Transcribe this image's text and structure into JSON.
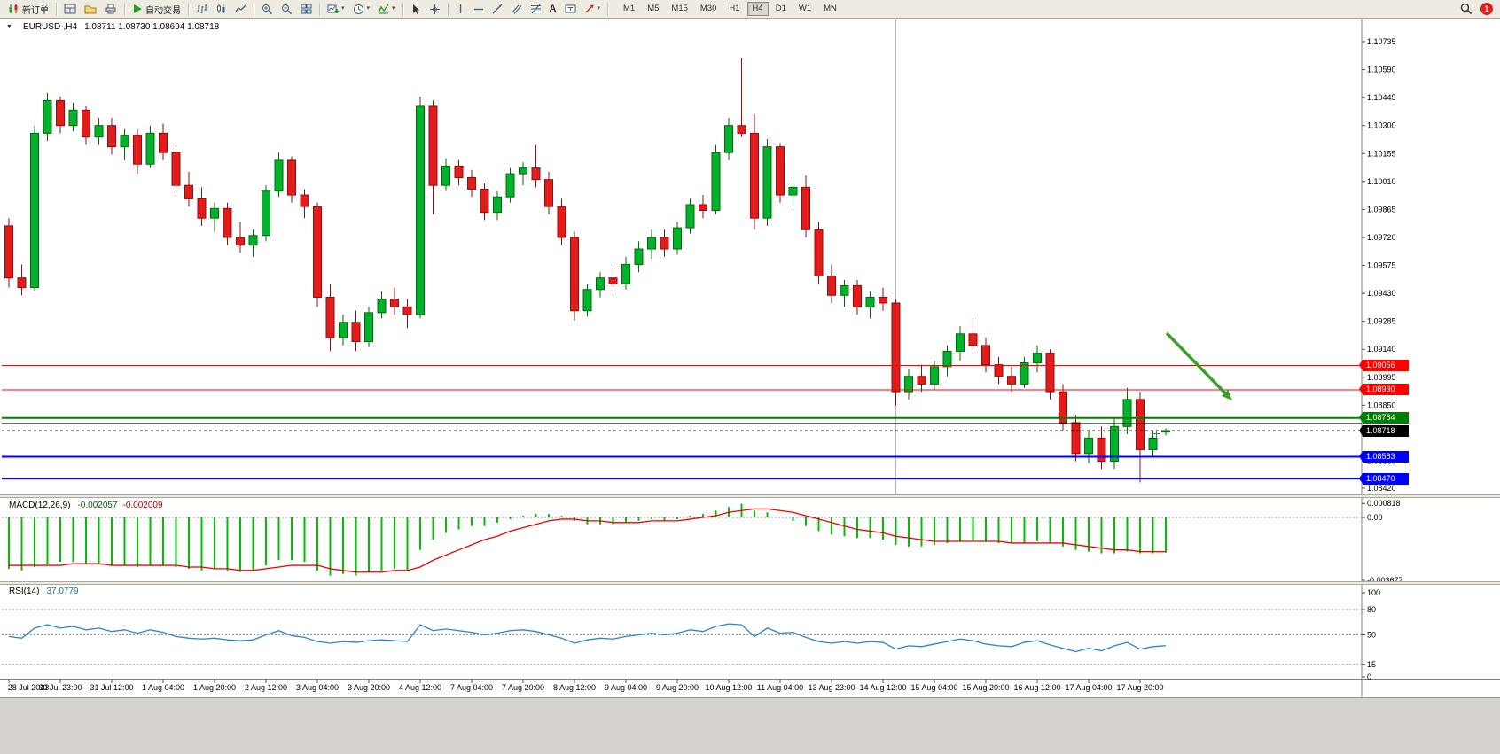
{
  "toolbar": {
    "new_order_label": "新订单",
    "autotrade_label": "自动交易",
    "text_tool_glyph": "A",
    "caret_icon": "▾",
    "timeframes": [
      "M1",
      "M5",
      "M15",
      "M30",
      "H1",
      "H4",
      "D1",
      "W1",
      "MN"
    ],
    "active_timeframe": "H4",
    "notification_count": "1"
  },
  "chart": {
    "one_click_icon": "▼",
    "symbol_period": "EURUSD-,H4",
    "ohlc_text": "1.08711 1.08730 1.08694 1.08718",
    "price_axis": [
      "1.10735",
      "1.10590",
      "1.10445",
      "1.10300",
      "1.10155",
      "1.10010",
      "1.09865",
      "1.09720",
      "1.09575",
      "1.09430",
      "1.09285",
      "1.09140",
      "1.08995",
      "1.08850",
      "1.08705",
      "1.08560",
      "1.08420"
    ],
    "time_axis": [
      "28 Jul 2023",
      "30 Jul 23:00",
      "31 Jul 12:00",
      "1 Aug 04:00",
      "1 Aug 20:00",
      "2 Aug 12:00",
      "3 Aug 04:00",
      "3 Aug 20:00",
      "4 Aug 12:00",
      "7 Aug 04:00",
      "7 Aug 20:00",
      "8 Aug 12:00",
      "9 Aug 04:00",
      "9 Aug 20:00",
      "10 Aug 12:00",
      "11 Aug 04:00",
      "13 Aug 23:00",
      "14 Aug 12:00",
      "15 Aug 04:00",
      "15 Aug 20:00",
      "16 Aug 12:00",
      "17 Aug 04:00",
      "17 Aug 20:00"
    ],
    "levels": [
      {
        "label": "1.09056",
        "price": 1.09056,
        "color": "#ff0000",
        "width": 1,
        "style": "solid"
      },
      {
        "label": "1.08930",
        "price": 1.0893,
        "color": "#ff0000",
        "width": 1,
        "style": "solid"
      },
      {
        "label": "1.08784",
        "price": 1.08784,
        "color": "#008000",
        "width": 2,
        "style": "solid"
      },
      {
        "label": "",
        "price": 1.08756,
        "color": "#111111",
        "width": 1,
        "style": "solid"
      },
      {
        "label": "1.08718",
        "price": 1.08718,
        "color": "#000000",
        "width": 1,
        "style": "dot"
      },
      {
        "label": "1.08583",
        "price": 1.08583,
        "color": "#0000ff",
        "width": 2,
        "style": "solid"
      },
      {
        "label": "1.08470",
        "price": 1.0847,
        "color": "#0000ff",
        "width": 2,
        "style": "solid"
      }
    ],
    "colors": {
      "bull": "#00b22d",
      "bear": "#e21b1b",
      "bull_edge": "#046b04",
      "bear_edge": "#8f0f0f",
      "macd_hist": "#00c000",
      "macd_signal": "#f00000",
      "rsi_line": "#2a85d0",
      "background": "#ffffff",
      "axis_text": "#000000"
    },
    "annotations": {
      "arrow": {
        "from": [
          1316,
          376
        ],
        "to": [
          1390,
          452
        ],
        "color": "#36a027"
      },
      "vline_index": 69
    }
  },
  "macd": {
    "title": "MACD(12,26,9)",
    "value_main": "-0.002057",
    "value_signal": "-0.002009",
    "axis": [
      "0.000818",
      "0.00",
      "-0.003677"
    ]
  },
  "rsi": {
    "title": "RSI(14)",
    "value_text": "37.0779",
    "axis": [
      "100",
      "80",
      "50",
      "15",
      "0"
    ],
    "levels": [
      80,
      50,
      15
    ]
  },
  "chart_data": [
    {
      "type": "candlestick",
      "title": "EURUSD-,H4",
      "ylim": [
        1.0842,
        1.10735
      ],
      "x_labels": [
        "28 Jul 2023",
        "30 Jul 23:00",
        "31 Jul 12:00",
        "1 Aug 04:00",
        "1 Aug 20:00",
        "2 Aug 12:00",
        "3 Aug 04:00",
        "3 Aug 20:00",
        "4 Aug 12:00",
        "7 Aug 04:00",
        "7 Aug 20:00",
        "8 Aug 12:00",
        "9 Aug 04:00",
        "9 Aug 20:00",
        "10 Aug 12:00",
        "11 Aug 04:00",
        "13 Aug 23:00",
        "14 Aug 12:00",
        "15 Aug 04:00",
        "15 Aug 20:00",
        "16 Aug 12:00",
        "17 Aug 04:00",
        "17 Aug 20:00"
      ],
      "ohlc": [
        [
          1.0978,
          1.0982,
          1.0946,
          1.0951
        ],
        [
          1.0951,
          1.0958,
          1.0942,
          1.0946
        ],
        [
          1.0946,
          1.103,
          1.0944,
          1.1026
        ],
        [
          1.1026,
          1.1047,
          1.1022,
          1.1043
        ],
        [
          1.1043,
          1.1045,
          1.1026,
          1.103
        ],
        [
          1.103,
          1.1042,
          1.1027,
          1.1038
        ],
        [
          1.1038,
          1.104,
          1.102,
          1.1024
        ],
        [
          1.1024,
          1.1034,
          1.102,
          1.103
        ],
        [
          1.103,
          1.1034,
          1.1015,
          1.1019
        ],
        [
          1.1019,
          1.1028,
          1.1012,
          1.1025
        ],
        [
          1.1025,
          1.1028,
          1.1005,
          1.101
        ],
        [
          1.101,
          1.103,
          1.1008,
          1.1026
        ],
        [
          1.1026,
          1.1031,
          1.1012,
          1.1016
        ],
        [
          1.1016,
          1.102,
          1.0995,
          1.0999
        ],
        [
          1.0999,
          1.1006,
          1.0988,
          1.0992
        ],
        [
          1.0992,
          1.0998,
          1.0978,
          1.0982
        ],
        [
          1.0982,
          1.099,
          1.0975,
          1.0987
        ],
        [
          1.0987,
          1.099,
          1.0968,
          1.0972
        ],
        [
          1.0972,
          1.098,
          1.0964,
          1.0968
        ],
        [
          1.0968,
          1.0976,
          1.0962,
          1.0973
        ],
        [
          1.0973,
          1.0999,
          1.097,
          1.0996
        ],
        [
          1.0996,
          1.1016,
          1.0993,
          1.1012
        ],
        [
          1.1012,
          1.1014,
          1.099,
          1.0994
        ],
        [
          1.0994,
          1.0997,
          1.0982,
          1.0988
        ],
        [
          1.0988,
          1.099,
          1.0936,
          1.0941
        ],
        [
          1.0941,
          1.0948,
          1.0913,
          1.092
        ],
        [
          1.092,
          1.0932,
          1.0916,
          1.0928
        ],
        [
          1.0928,
          1.0934,
          1.0913,
          1.0918
        ],
        [
          1.0918,
          1.0936,
          1.0915,
          1.0933
        ],
        [
          1.0933,
          1.0944,
          1.093,
          1.094
        ],
        [
          1.094,
          1.0946,
          1.0932,
          1.0936
        ],
        [
          1.0936,
          1.094,
          1.0925,
          1.0932
        ],
        [
          1.0932,
          1.1045,
          1.093,
          1.104
        ],
        [
          1.104,
          1.1043,
          1.0984,
          1.0999
        ],
        [
          1.0999,
          1.1013,
          1.0996,
          1.1009
        ],
        [
          1.1009,
          1.1012,
          1.0999,
          1.1003
        ],
        [
          1.1003,
          1.1007,
          1.0993,
          1.0997
        ],
        [
          1.0997,
          1.1,
          1.0981,
          1.0985
        ],
        [
          1.0985,
          1.0996,
          1.0981,
          1.0993
        ],
        [
          1.0993,
          1.1008,
          1.099,
          1.1005
        ],
        [
          1.1005,
          1.1011,
          1.0999,
          1.1008
        ],
        [
          1.1008,
          1.102,
          1.0998,
          1.1002
        ],
        [
          1.1002,
          1.1006,
          1.0984,
          1.0988
        ],
        [
          1.0988,
          1.0992,
          1.0968,
          1.0972
        ],
        [
          1.0972,
          1.0975,
          1.0929,
          1.0934
        ],
        [
          1.0934,
          1.0948,
          1.0931,
          1.0945
        ],
        [
          1.0945,
          1.0954,
          1.0941,
          1.0951
        ],
        [
          1.0951,
          1.0956,
          1.0944,
          1.0948
        ],
        [
          1.0948,
          1.0962,
          1.0945,
          1.0958
        ],
        [
          1.0958,
          1.097,
          1.0954,
          1.0966
        ],
        [
          1.0966,
          1.0976,
          1.0961,
          1.0972
        ],
        [
          1.0972,
          1.0976,
          1.0962,
          1.0966
        ],
        [
          1.0966,
          1.098,
          1.0963,
          1.0977
        ],
        [
          1.0977,
          1.0992,
          1.0974,
          1.0989
        ],
        [
          1.0989,
          1.0994,
          1.0982,
          1.0986
        ],
        [
          1.0986,
          1.102,
          1.0984,
          1.1016
        ],
        [
          1.1016,
          1.1034,
          1.1012,
          1.103
        ],
        [
          1.103,
          1.1065,
          1.1024,
          1.1026
        ],
        [
          1.1026,
          1.1036,
          1.0976,
          1.0982
        ],
        [
          1.0982,
          1.1023,
          1.0978,
          1.1019
        ],
        [
          1.1019,
          1.1021,
          1.099,
          1.0994
        ],
        [
          1.0994,
          1.1002,
          1.0988,
          1.0998
        ],
        [
          1.0998,
          1.1004,
          1.0972,
          1.0976
        ],
        [
          1.0976,
          1.098,
          1.0948,
          1.0952
        ],
        [
          1.0952,
          1.0958,
          1.0938,
          1.0942
        ],
        [
          1.0942,
          1.095,
          1.0936,
          1.0947
        ],
        [
          1.0947,
          1.095,
          1.0932,
          1.0936
        ],
        [
          1.0936,
          1.0944,
          1.093,
          1.0941
        ],
        [
          1.0941,
          1.0946,
          1.0934,
          1.0938
        ],
        [
          1.0938,
          1.094,
          1.0885,
          1.0892
        ],
        [
          1.0892,
          1.0904,
          1.0888,
          1.09
        ],
        [
          1.09,
          1.0906,
          1.0892,
          1.0896
        ],
        [
          1.0896,
          1.0908,
          1.0893,
          1.0905
        ],
        [
          1.0905,
          1.0916,
          1.09,
          1.0913
        ],
        [
          1.0913,
          1.0926,
          1.0908,
          1.0922
        ],
        [
          1.0922,
          1.093,
          1.0912,
          1.0916
        ],
        [
          1.0916,
          1.092,
          1.0902,
          1.0906
        ],
        [
          1.0906,
          1.091,
          1.0896,
          1.09
        ],
        [
          1.09,
          1.0905,
          1.0892,
          1.0896
        ],
        [
          1.0896,
          1.091,
          1.0894,
          1.0907
        ],
        [
          1.0907,
          1.0916,
          1.0902,
          1.0912
        ],
        [
          1.0912,
          1.0914,
          1.0888,
          1.0892
        ],
        [
          1.0892,
          1.0896,
          1.0872,
          1.0876
        ],
        [
          1.0876,
          1.088,
          1.0856,
          1.086
        ],
        [
          1.086,
          1.0872,
          1.0855,
          1.0868
        ],
        [
          1.0868,
          1.0874,
          1.0852,
          1.0856
        ],
        [
          1.0856,
          1.0878,
          1.0852,
          1.0874
        ],
        [
          1.0874,
          1.0894,
          1.087,
          1.0888
        ],
        [
          1.0888,
          1.0892,
          1.0845,
          1.0862
        ],
        [
          1.0862,
          1.0872,
          1.0858,
          1.0868
        ],
        [
          1.08711,
          1.0873,
          1.08694,
          1.08718
        ]
      ]
    },
    {
      "type": "bar",
      "title": "MACD(12,26,9)",
      "ylim": [
        -0.003677,
        0.000818
      ],
      "values": [
        -0.003,
        -0.0031,
        -0.0029,
        -0.0027,
        -0.0026,
        -0.0026,
        -0.0027,
        -0.0027,
        -0.0028,
        -0.0028,
        -0.0029,
        -0.0028,
        -0.0028,
        -0.0029,
        -0.003,
        -0.0031,
        -0.003,
        -0.0031,
        -0.0032,
        -0.0031,
        -0.0028,
        -0.0025,
        -0.0025,
        -0.0026,
        -0.0031,
        -0.0034,
        -0.0033,
        -0.0034,
        -0.0032,
        -0.0031,
        -0.003,
        -0.0031,
        -0.0019,
        -0.0013,
        -0.0009,
        -0.0007,
        -0.0005,
        -0.0005,
        -0.0003,
        -0.0001,
        0.0001,
        0.0002,
        0.0002,
        0.0001,
        -0.0002,
        -0.0004,
        -0.0004,
        -0.0004,
        -0.0003,
        -0.0002,
        -0.0001,
        -0.0002,
        -0.0001,
        0.0001,
        0.0002,
        0.0004,
        0.0006,
        0.0008,
        0.0004,
        0.0003,
        0.0,
        -0.0002,
        -0.0005,
        -0.0008,
        -0.001,
        -0.0011,
        -0.0012,
        -0.0012,
        -0.0013,
        -0.0016,
        -0.0017,
        -0.0017,
        -0.0016,
        -0.0015,
        -0.0014,
        -0.0014,
        -0.0014,
        -0.0015,
        -0.0015,
        -0.0015,
        -0.0014,
        -0.0015,
        -0.0017,
        -0.0019,
        -0.002,
        -0.0021,
        -0.0021,
        -0.002,
        -0.0021,
        -0.0021,
        -0.002057
      ],
      "signal": [
        -0.0028,
        -0.0028,
        -0.0028,
        -0.0028,
        -0.0028,
        -0.0027,
        -0.0027,
        -0.0027,
        -0.0028,
        -0.0028,
        -0.0028,
        -0.0028,
        -0.0028,
        -0.0028,
        -0.0029,
        -0.0029,
        -0.003,
        -0.003,
        -0.0031,
        -0.0031,
        -0.003,
        -0.0029,
        -0.0028,
        -0.0028,
        -0.0028,
        -0.003,
        -0.0031,
        -0.0032,
        -0.0032,
        -0.0032,
        -0.0031,
        -0.0031,
        -0.0029,
        -0.0025,
        -0.0022,
        -0.0019,
        -0.0016,
        -0.0013,
        -0.0011,
        -0.0008,
        -0.0006,
        -0.0004,
        -0.0002,
        -0.0001,
        -0.0001,
        -0.0002,
        -0.0002,
        -0.0003,
        -0.0003,
        -0.0003,
        -0.0002,
        -0.0002,
        -0.0002,
        -0.0001,
        0.0,
        0.0001,
        0.0003,
        0.0004,
        0.0005,
        0.0005,
        0.0004,
        0.0003,
        0.0001,
        -0.0001,
        -0.0003,
        -0.0005,
        -0.0007,
        -0.0008,
        -0.0009,
        -0.0011,
        -0.0012,
        -0.0013,
        -0.0014,
        -0.0014,
        -0.0014,
        -0.0014,
        -0.0014,
        -0.0014,
        -0.0015,
        -0.0015,
        -0.0015,
        -0.0015,
        -0.0015,
        -0.0016,
        -0.0017,
        -0.0018,
        -0.0019,
        -0.0019,
        -0.002,
        -0.002,
        -0.002009
      ]
    },
    {
      "type": "line",
      "title": "RSI(14)",
      "ylim": [
        0,
        100
      ],
      "levels": [
        80,
        50,
        15
      ],
      "values": [
        48,
        46,
        58,
        62,
        58,
        60,
        56,
        58,
        54,
        56,
        52,
        56,
        53,
        48,
        46,
        45,
        46,
        44,
        43,
        44,
        50,
        55,
        49,
        47,
        42,
        40,
        42,
        41,
        43,
        44,
        43,
        42,
        62,
        55,
        57,
        55,
        53,
        50,
        52,
        55,
        56,
        54,
        50,
        46,
        40,
        44,
        46,
        45,
        48,
        50,
        52,
        50,
        52,
        56,
        54,
        60,
        63,
        62,
        48,
        58,
        52,
        53,
        47,
        42,
        40,
        42,
        40,
        42,
        41,
        33,
        37,
        36,
        39,
        42,
        45,
        43,
        39,
        37,
        36,
        41,
        43,
        38,
        34,
        30,
        34,
        31,
        37,
        41,
        33,
        36,
        37.0779
      ]
    }
  ]
}
